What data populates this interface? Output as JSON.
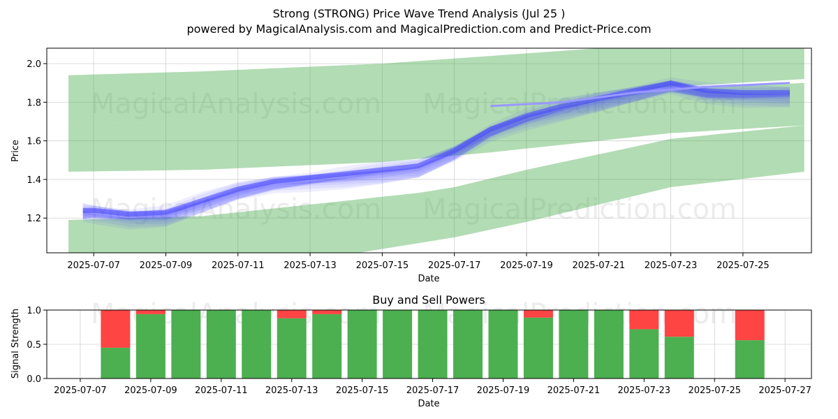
{
  "title": {
    "line1": "Strong (STRONG) Price Wave Trend Analysis (Jul 25 )",
    "line2": "powered by MagicalAnalysis.com and MagicalPrediction.com and Predict-Price.com"
  },
  "watermarks": [
    "MagicalAnalysis.com",
    "MagicalPrediction.com"
  ],
  "colors": {
    "band": "#4caf50",
    "wave": "#4040ff",
    "buy": "#4caf50",
    "sell": "#ff4444",
    "trend_line": "#9999ff",
    "grid": "#d0d0d0"
  },
  "chart_data": [
    {
      "type": "area",
      "title": "",
      "xlabel": "Date",
      "ylabel": "Price",
      "xlim": [
        "2025-07-05.7",
        "2025-07-26.9"
      ],
      "ylim": [
        1.02,
        2.08
      ],
      "grid": true,
      "x_ticks": [
        "2025-07-07",
        "2025-07-09",
        "2025-07-11",
        "2025-07-13",
        "2025-07-15",
        "2025-07-17",
        "2025-07-19",
        "2025-07-21",
        "2025-07-23",
        "2025-07-25"
      ],
      "y_ticks": [
        1.2,
        1.4,
        1.6,
        1.8,
        2.0
      ],
      "bands": [
        {
          "x": [
            "2025-07-06.3",
            "2025-07-10",
            "2025-07-15",
            "2025-07-18",
            "2025-07-21",
            "2025-07-23",
            "2025-07-26.7"
          ],
          "upper": [
            1.94,
            1.96,
            2.0,
            2.04,
            2.08,
            2.1,
            2.08
          ],
          "lower": [
            1.69,
            1.7,
            1.74,
            1.79,
            1.84,
            1.88,
            1.92
          ]
        },
        {
          "x": [
            "2025-07-06.3",
            "2025-07-10",
            "2025-07-15",
            "2025-07-18",
            "2025-07-21",
            "2025-07-23",
            "2025-07-26.7"
          ],
          "upper": [
            1.69,
            1.7,
            1.74,
            1.79,
            1.84,
            1.87,
            1.9
          ],
          "lower": [
            1.44,
            1.45,
            1.49,
            1.54,
            1.6,
            1.64,
            1.68
          ]
        },
        {
          "x": [
            "2025-07-06.3",
            "2025-07-10",
            "2025-07-13",
            "2025-07-16",
            "2025-07-17",
            "2025-07-19",
            "2025-07-21",
            "2025-07-23",
            "2025-07-26.7"
          ],
          "upper": [
            1.19,
            1.21,
            1.27,
            1.33,
            1.36,
            1.45,
            1.53,
            1.61,
            1.68
          ],
          "lower": [
            0.9,
            0.92,
            0.98,
            1.07,
            1.1,
            1.18,
            1.27,
            1.36,
            1.44
          ]
        }
      ],
      "wave_mean": {
        "x": [
          "2025-07-06.7",
          "2025-07-07",
          "2025-07-08",
          "2025-07-09",
          "2025-07-10",
          "2025-07-11",
          "2025-07-12",
          "2025-07-13",
          "2025-07-14",
          "2025-07-15",
          "2025-07-16",
          "2025-07-17",
          "2025-07-18",
          "2025-07-19",
          "2025-07-20",
          "2025-07-21",
          "2025-07-22",
          "2025-07-23",
          "2025-07-24",
          "2025-07-25",
          "2025-07-26.3"
        ],
        "y": [
          1.24,
          1.24,
          1.22,
          1.23,
          1.29,
          1.35,
          1.39,
          1.41,
          1.43,
          1.45,
          1.47,
          1.55,
          1.66,
          1.73,
          1.78,
          1.82,
          1.86,
          1.9,
          1.86,
          1.85,
          1.85
        ]
      },
      "trend_line": {
        "x": [
          "2025-07-18",
          "2025-07-20",
          "2025-07-22",
          "2025-07-24",
          "2025-07-26.3"
        ],
        "y": [
          1.78,
          1.8,
          1.85,
          1.88,
          1.9
        ]
      }
    },
    {
      "type": "bar",
      "title": "Buy and Sell Powers",
      "xlabel": "Date",
      "ylabel": "Signal Strength",
      "ylim": [
        0,
        1
      ],
      "grid": true,
      "x_ticks": [
        "2025-07-07",
        "2025-07-09",
        "2025-07-11",
        "2025-07-13",
        "2025-07-15",
        "2025-07-17",
        "2025-07-19",
        "2025-07-21",
        "2025-07-23",
        "2025-07-25",
        "2025-07-27"
      ],
      "y_ticks": [
        0.0,
        0.5,
        1.0
      ],
      "dates": [
        "2025-07-08",
        "2025-07-09",
        "2025-07-10",
        "2025-07-11",
        "2025-07-12",
        "2025-07-13",
        "2025-07-14",
        "2025-07-15",
        "2025-07-16",
        "2025-07-17",
        "2025-07-18",
        "2025-07-19",
        "2025-07-20",
        "2025-07-21",
        "2025-07-22",
        "2025-07-23",
        "2025-07-24",
        "2025-07-26"
      ],
      "series": [
        {
          "name": "Buy",
          "values": [
            0.45,
            0.94,
            1.0,
            1.0,
            1.0,
            0.88,
            0.94,
            1.0,
            1.0,
            1.0,
            1.0,
            1.0,
            0.89,
            1.0,
            1.0,
            0.72,
            0.61,
            0.56
          ]
        },
        {
          "name": "Sell",
          "values": [
            0.55,
            0.06,
            0.0,
            0.0,
            0.0,
            0.12,
            0.06,
            0.0,
            0.0,
            0.0,
            0.0,
            0.0,
            0.11,
            0.0,
            0.0,
            0.28,
            0.39,
            0.44
          ]
        }
      ]
    }
  ]
}
